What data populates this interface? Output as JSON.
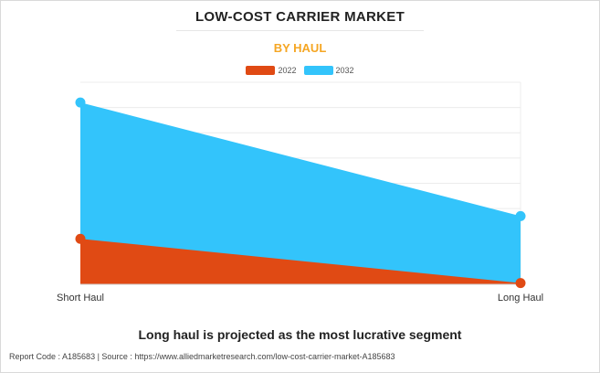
{
  "header": {
    "title": "LOW-COST CARRIER MARKET",
    "subtitle": "BY HAUL"
  },
  "legend": {
    "items": [
      {
        "label": "2022",
        "color": "#e04a14"
      },
      {
        "label": "2032",
        "color": "#33c4fb"
      }
    ]
  },
  "chart_data": {
    "type": "area",
    "title": "LOW-COST CARRIER MARKET",
    "subtitle": "BY HAUL",
    "categories": [
      "Short Haul",
      "Long Haul"
    ],
    "series": [
      {
        "name": "2022",
        "color": "#e04a14",
        "values": [
          18,
          0.5
        ]
      },
      {
        "name": "2032",
        "color": "#33c4fb",
        "values": [
          72,
          27
        ]
      }
    ],
    "ylim": [
      0,
      80
    ],
    "grid": true,
    "y_tick_labels_shown": false,
    "legend_position": "top-center"
  },
  "caption": "Long haul is projected as the most lucrative segment",
  "footer": "Report Code : A185683  |  Source : https://www.alliedmarketresearch.com/low-cost-carrier-market-A185683"
}
